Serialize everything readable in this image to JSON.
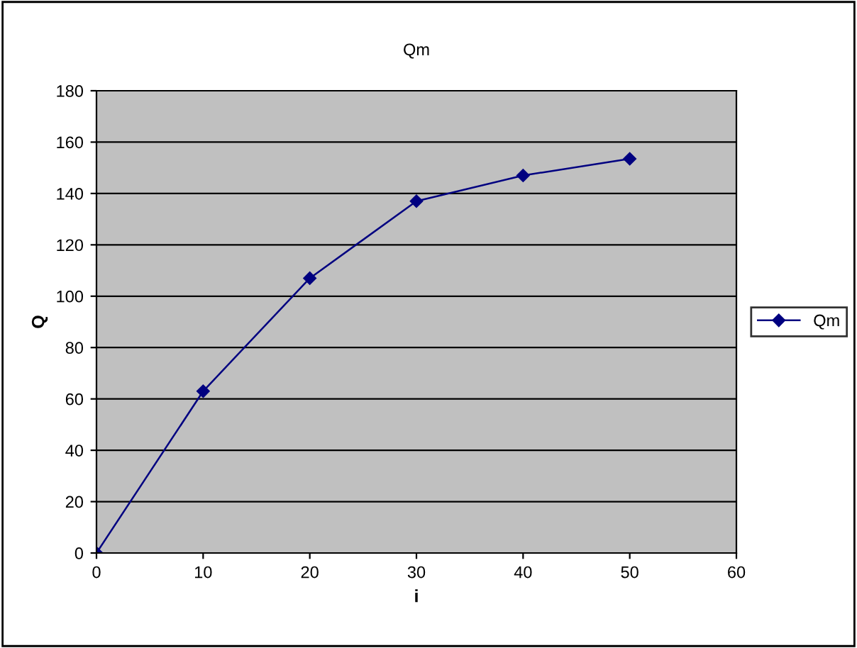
{
  "chart_data": {
    "type": "line",
    "title": "Qm",
    "xlabel": "i",
    "ylabel": "Q",
    "x": [
      0,
      10,
      20,
      30,
      40,
      50
    ],
    "series": [
      {
        "name": "Qm",
        "color": "#000080",
        "values": [
          0,
          63,
          107,
          137,
          147,
          153.5
        ]
      }
    ],
    "xlim": [
      0,
      60
    ],
    "xticks": [
      0,
      10,
      20,
      30,
      40,
      50,
      60
    ],
    "ylim": [
      0,
      180
    ],
    "yticks": [
      0,
      20,
      40,
      60,
      80,
      100,
      120,
      140,
      160,
      180
    ],
    "grid": "y",
    "legend": "right",
    "marker": "diamond",
    "line_style": "solid"
  }
}
